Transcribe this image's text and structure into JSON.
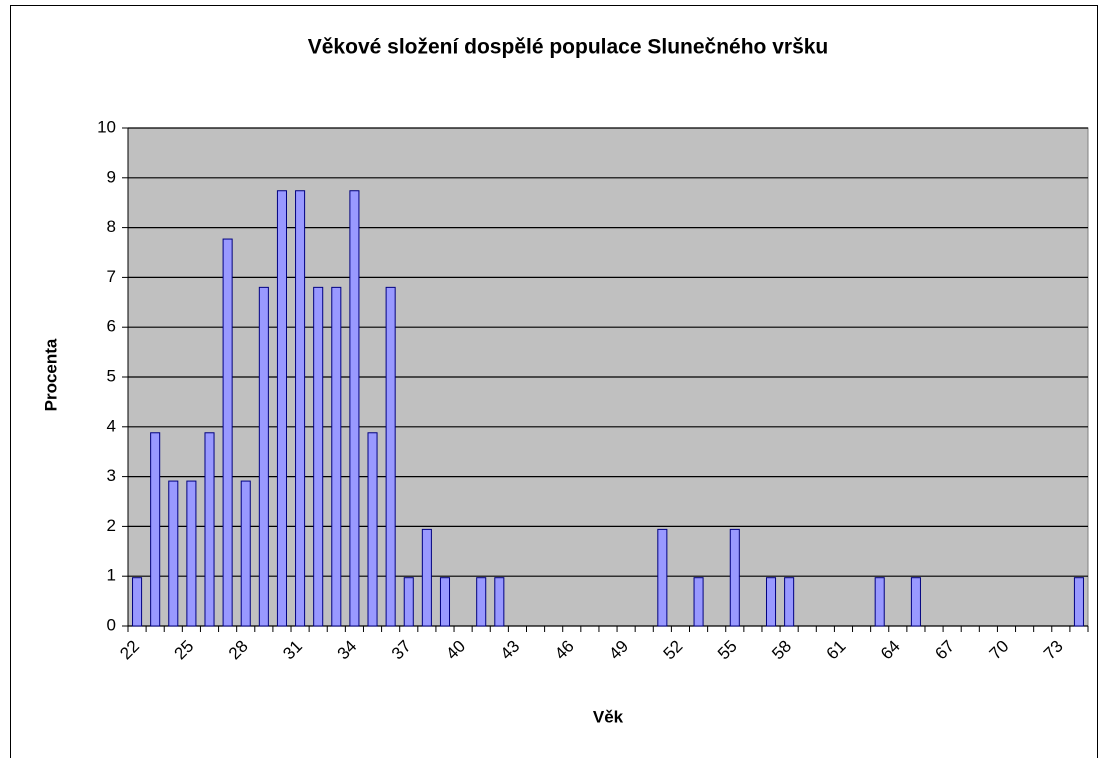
{
  "chart_data": {
    "type": "bar",
    "title": "Věkové složení dospělé populace Slunečného vršku",
    "x_label": "Věk",
    "y_label": "Procenta",
    "categories": [
      "22",
      null,
      null,
      "25",
      null,
      null,
      "28",
      null,
      null,
      "31",
      null,
      null,
      "34",
      null,
      null,
      "37",
      null,
      null,
      "40",
      null,
      null,
      "43",
      null,
      null,
      "46",
      null,
      null,
      "49",
      null,
      null,
      "52",
      null,
      null,
      "55",
      null,
      null,
      "58",
      null,
      null,
      "61",
      null,
      null,
      "64",
      null,
      null,
      "67",
      null,
      null,
      "70",
      null,
      null,
      "73",
      null
    ],
    "values": [
      0.97,
      3.88,
      2.91,
      2.91,
      3.88,
      7.77,
      2.91,
      6.8,
      8.74,
      8.74,
      6.8,
      6.8,
      8.74,
      3.88,
      6.8,
      0.97,
      1.94,
      0.97,
      0,
      0.97,
      0.97,
      0,
      0,
      0,
      0,
      0,
      0,
      0,
      0,
      1.94,
      0,
      0.97,
      0,
      1.94,
      0,
      0.97,
      0.97,
      0,
      0,
      0,
      0,
      0.97,
      0,
      0.97,
      0,
      0,
      0,
      0,
      0,
      0,
      0,
      0,
      0.97
    ],
    "color": "#9999ff",
    "ylim": [
      0,
      10
    ],
    "yticks": [
      0,
      1,
      2,
      3,
      4,
      5,
      6,
      7,
      8,
      9,
      10
    ],
    "grid": true
  }
}
